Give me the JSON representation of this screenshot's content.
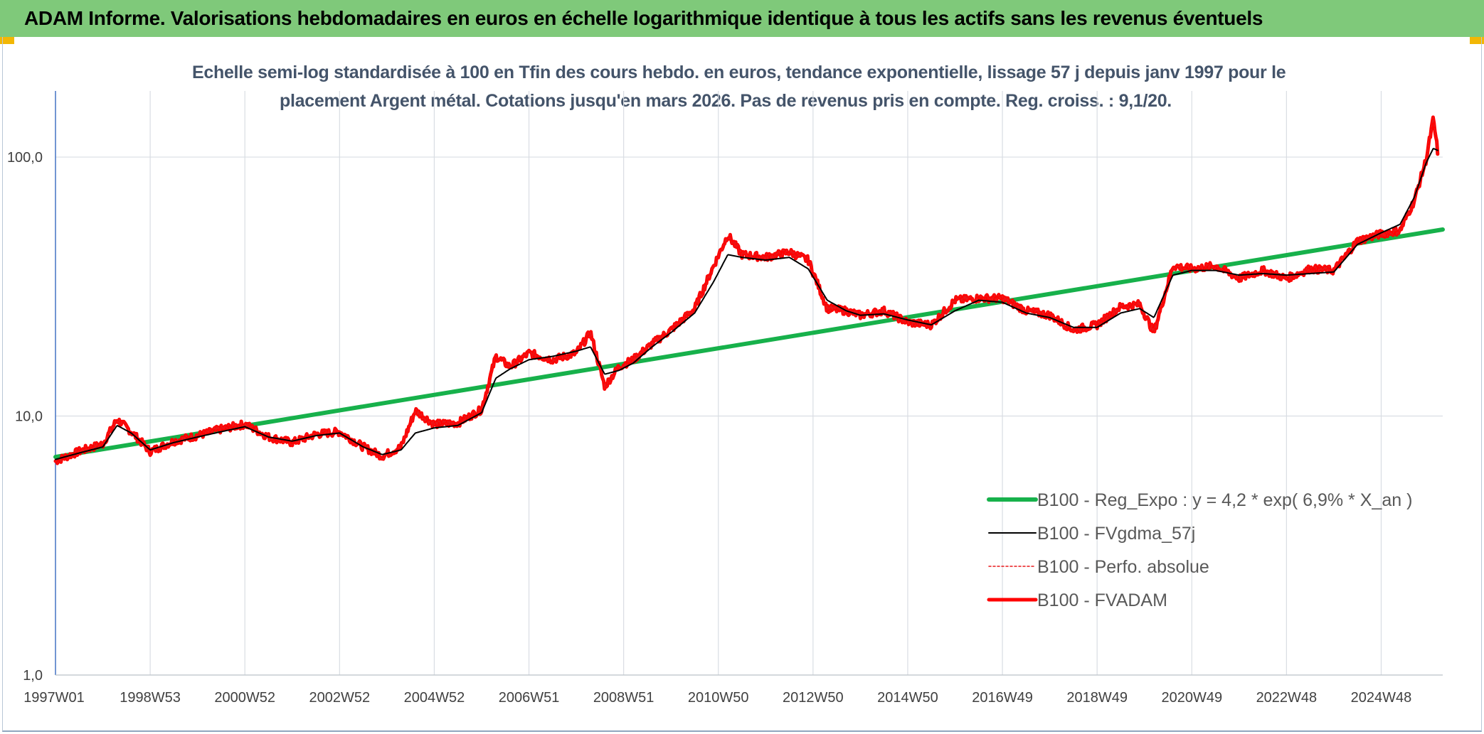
{
  "header": {
    "title": "ADAM Informe. Valorisations hebdomadaires en euros en échelle logarithmique identique à tous les actifs sans les revenus éventuels"
  },
  "chart_data": {
    "type": "line",
    "subtitle_line1": "Echelle semi-log standardisée à 100 en Tfin des cours hebdo. en euros, tendance exponentielle, lissage 57 j depuis janv 1997 pour le",
    "subtitle_line2": "placement Argent métal. Cotations jusqu'en mars 2026. Pas de revenus pris en compte. Reg. croiss. : 9,1/20.",
    "y_scale": "log",
    "ylim": [
      1,
      180
    ],
    "xlim": [
      1997.0,
      2026.3
    ],
    "y_ticks": [
      {
        "value": 1,
        "label": "1,0"
      },
      {
        "value": 10,
        "label": "10,0"
      },
      {
        "value": 100,
        "label": "100,0"
      }
    ],
    "x_ticks": [
      {
        "year": 1997.0,
        "label": "1997W01"
      },
      {
        "year": 1999.0,
        "label": "1998W53"
      },
      {
        "year": 2001.0,
        "label": "2000W52"
      },
      {
        "year": 2003.0,
        "label": "2002W52"
      },
      {
        "year": 2005.0,
        "label": "2004W52"
      },
      {
        "year": 2007.0,
        "label": "2006W51"
      },
      {
        "year": 2009.0,
        "label": "2008W51"
      },
      {
        "year": 2011.0,
        "label": "2010W50"
      },
      {
        "year": 2013.0,
        "label": "2012W50"
      },
      {
        "year": 2015.0,
        "label": "2014W50"
      },
      {
        "year": 2017.0,
        "label": "2016W49"
      },
      {
        "year": 2019.0,
        "label": "2018W49"
      },
      {
        "year": 2021.0,
        "label": "2020W49"
      },
      {
        "year": 2023.0,
        "label": "2022W48"
      },
      {
        "year": 2025.0,
        "label": "2024W48"
      }
    ],
    "grid": true,
    "legend_position": "bottom-right",
    "colors": {
      "trend": "#17b14b",
      "smoothed": "#000000",
      "absolute": "#e8191c",
      "fvadam": "#ff0000",
      "grid": "#d9dde3",
      "axis": "#4472c4",
      "tick_text": "#404040",
      "subtitle": "#44546a"
    },
    "series": [
      {
        "name": "B100 - Reg_Expo : y = 4,2 * exp( 6,9% *  X_an )",
        "style": "trend",
        "x": [
          1997.0,
          2026.3
        ],
        "y": [
          6.95,
          52.5
        ]
      },
      {
        "name": "B100 - FVgdma_57j",
        "style": "smoothed",
        "x": [
          1997.0,
          1997.5,
          1998.0,
          1998.3,
          1998.6,
          1999.0,
          1999.5,
          2000.0,
          2000.5,
          2001.0,
          2001.5,
          2002.0,
          2002.5,
          2003.0,
          2003.5,
          2003.9,
          2004.3,
          2004.6,
          2005.0,
          2005.5,
          2006.0,
          2006.3,
          2006.6,
          2007.0,
          2007.5,
          2008.0,
          2008.3,
          2008.6,
          2008.9,
          2009.2,
          2009.6,
          2010.0,
          2010.5,
          2010.9,
          2011.2,
          2011.5,
          2012.0,
          2012.5,
          2012.9,
          2013.3,
          2013.7,
          2014.0,
          2014.5,
          2015.0,
          2015.5,
          2016.0,
          2016.5,
          2017.0,
          2017.5,
          2018.0,
          2018.5,
          2019.0,
          2019.5,
          2019.9,
          2020.2,
          2020.6,
          2021.0,
          2021.5,
          2022.0,
          2022.5,
          2023.0,
          2023.5,
          2024.0,
          2024.5,
          2025.0,
          2025.4,
          2025.7,
          2025.95,
          2026.1,
          2026.2
        ],
        "y": [
          6.8,
          7.2,
          7.6,
          9.2,
          8.6,
          7.4,
          7.9,
          8.3,
          8.7,
          9.1,
          8.3,
          8.0,
          8.4,
          8.6,
          7.6,
          7.1,
          7.4,
          8.6,
          9.0,
          9.2,
          10.3,
          14.0,
          15.2,
          16.5,
          17.0,
          17.8,
          18.5,
          14.5,
          15.0,
          16.0,
          18.5,
          21.0,
          25.0,
          33.0,
          42.0,
          41.0,
          40.0,
          41.0,
          37.0,
          28.0,
          25.5,
          24.5,
          24.8,
          23.5,
          22.5,
          25.5,
          28.0,
          27.5,
          25.0,
          24.0,
          22.0,
          22.0,
          25.0,
          26.0,
          24.0,
          35.0,
          36.5,
          36.5,
          35.0,
          35.5,
          35.0,
          35.5,
          36.0,
          46.0,
          51.0,
          55.0,
          70.0,
          95.0,
          108.0,
          106.0
        ]
      },
      {
        "name": "B100 - Perfo. absolue",
        "style": "absolute",
        "x": [
          1997.0,
          1997.5,
          1998.0,
          1998.3,
          1998.6,
          1999.0,
          1999.5,
          2000.0,
          2000.5,
          2001.0,
          2001.5,
          2002.0,
          2002.5,
          2003.0,
          2003.5,
          2003.9,
          2004.3,
          2004.6,
          2005.0,
          2005.5,
          2006.0,
          2006.3,
          2006.6,
          2007.0,
          2007.5,
          2008.0,
          2008.3,
          2008.6,
          2008.9,
          2009.2,
          2009.6,
          2010.0,
          2010.5,
          2010.9,
          2011.2,
          2011.5,
          2012.0,
          2012.5,
          2012.9,
          2013.3,
          2013.7,
          2014.0,
          2014.5,
          2015.0,
          2015.5,
          2016.0,
          2016.5,
          2017.0,
          2017.5,
          2018.0,
          2018.5,
          2019.0,
          2019.5,
          2019.9,
          2020.2,
          2020.6,
          2021.0,
          2021.5,
          2022.0,
          2022.5,
          2023.0,
          2023.5,
          2024.0,
          2024.5,
          2025.0,
          2025.4,
          2025.7,
          2025.95,
          2026.1,
          2026.2
        ],
        "y": [
          6.7,
          7.3,
          7.8,
          9.7,
          8.7,
          7.3,
          8.0,
          8.4,
          8.9,
          9.3,
          8.3,
          7.9,
          8.5,
          8.7,
          7.6,
          7.0,
          7.6,
          10.5,
          9.3,
          9.4,
          10.6,
          17.0,
          15.5,
          17.5,
          16.5,
          17.5,
          21.0,
          13.0,
          15.5,
          16.5,
          19.0,
          21.5,
          26.0,
          38.0,
          50.0,
          42.0,
          41.0,
          43.0,
          40.0,
          26.0,
          25.5,
          24.5,
          25.5,
          23.0,
          22.5,
          28.0,
          28.5,
          28.5,
          25.5,
          24.5,
          21.5,
          22.5,
          26.5,
          27.0,
          21.0,
          38.0,
          37.0,
          38.0,
          34.0,
          36.5,
          34.0,
          37.0,
          36.5,
          47.5,
          50.5,
          52.0,
          68.0,
          98.0,
          140.0,
          103.0
        ]
      },
      {
        "name": "B100 - FVADAM",
        "style": "fvadam",
        "x": [
          1997.0,
          1997.5,
          1998.0,
          1998.3,
          1998.6,
          1999.0,
          1999.5,
          2000.0,
          2000.5,
          2001.0,
          2001.5,
          2002.0,
          2002.5,
          2003.0,
          2003.5,
          2003.9,
          2004.3,
          2004.6,
          2005.0,
          2005.5,
          2006.0,
          2006.3,
          2006.6,
          2007.0,
          2007.5,
          2008.0,
          2008.3,
          2008.6,
          2008.9,
          2009.2,
          2009.6,
          2010.0,
          2010.5,
          2010.9,
          2011.2,
          2011.5,
          2012.0,
          2012.5,
          2012.9,
          2013.3,
          2013.7,
          2014.0,
          2014.5,
          2015.0,
          2015.5,
          2016.0,
          2016.5,
          2017.0,
          2017.5,
          2018.0,
          2018.5,
          2019.0,
          2019.5,
          2019.9,
          2020.2,
          2020.6,
          2021.0,
          2021.5,
          2022.0,
          2022.5,
          2023.0,
          2023.5,
          2024.0,
          2024.5,
          2025.0,
          2025.4,
          2025.7,
          2025.95,
          2026.1,
          2026.2
        ],
        "y": [
          6.7,
          7.3,
          7.8,
          9.7,
          8.7,
          7.3,
          8.0,
          8.4,
          8.9,
          9.3,
          8.3,
          7.9,
          8.5,
          8.7,
          7.6,
          7.0,
          7.6,
          10.5,
          9.3,
          9.4,
          10.6,
          17.0,
          15.5,
          17.5,
          16.5,
          17.5,
          21.0,
          13.0,
          15.5,
          16.5,
          19.0,
          21.5,
          26.0,
          38.0,
          50.0,
          42.0,
          41.0,
          43.0,
          40.0,
          26.0,
          25.5,
          24.5,
          25.5,
          23.0,
          22.5,
          28.0,
          28.5,
          28.5,
          25.5,
          24.5,
          21.5,
          22.5,
          26.5,
          27.0,
          21.0,
          38.0,
          37.0,
          38.0,
          34.0,
          36.5,
          34.0,
          37.0,
          36.5,
          47.5,
          50.5,
          52.0,
          68.0,
          98.0,
          140.0,
          103.0
        ]
      }
    ]
  }
}
